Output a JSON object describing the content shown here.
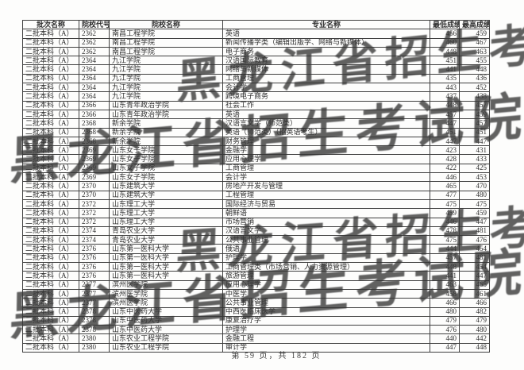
{
  "document": {
    "table": {
      "headers": [
        "批次名称",
        "院校代号",
        "院校名称",
        "专业名称",
        "最低成绩",
        "最高成绩"
      ],
      "rows": [
        [
          "二批本科（A）",
          "2362",
          "南昌工程学院",
          "英语",
          "456",
          "459"
        ],
        [
          "二批本科（A）",
          "2362",
          "南昌工程学院",
          "新闻传播学类（编辑出版学、网络与新媒体）",
          "460",
          "467"
        ],
        [
          "二批本科（A）",
          "2362",
          "南昌工程学院",
          "电子商务",
          "448",
          "463"
        ],
        [
          "二批本科（A）",
          "2364",
          "九江学院",
          "汉语国际教育",
          "451",
          "455"
        ],
        [
          "二批本科（A）",
          "2364",
          "九江学院",
          "网络与新媒体",
          "441",
          "448"
        ],
        [
          "二批本科（A）",
          "2364",
          "九江学院",
          "工商管理",
          "435",
          "436"
        ],
        [
          "二批本科（A）",
          "2364",
          "九江学院",
          "会计学",
          "443",
          "452"
        ],
        [
          "二批本科（A）",
          "2364",
          "九江学院",
          "跨境电子商务",
          "437",
          "438"
        ],
        [
          "二批本科（A）",
          "2366",
          "山东青年政治学院",
          "社会工作",
          "448",
          "457"
        ],
        [
          "二批本科（A）",
          "2366",
          "山东青年政治学院",
          "英语",
          "457",
          "459"
        ],
        [
          "二批本科（A）",
          "2368",
          "新余学院",
          "汉语言文学（师范类）",
          "447",
          "457"
        ],
        [
          "二批本科（A）",
          "2368",
          "新余学院",
          "英语（师范类）（招英语考生）",
          "451",
          "451"
        ],
        [
          "二批本科（A）",
          "2368",
          "新余学院",
          "财务管理",
          "447",
          "447"
        ],
        [
          "二批本科（A）",
          "2369",
          "山东女子学院",
          "金融学",
          "423",
          "431"
        ],
        [
          "二批本科（A）",
          "2369",
          "山东女子学院",
          "应用心理学",
          "428",
          "433"
        ],
        [
          "二批本科（A）",
          "2369",
          "山东女子学院",
          "工商管理",
          "422",
          "425"
        ],
        [
          "二批本科（A）",
          "2369",
          "山东女子学院",
          "会计学",
          "446",
          "453"
        ],
        [
          "二批本科（A）",
          "2370",
          "山东建筑大学",
          "房地产开发与管理",
          "465",
          "470"
        ],
        [
          "二批本科（A）",
          "2370",
          "山东建筑大学",
          "工程管理",
          "477",
          "480"
        ],
        [
          "二批本科（A）",
          "2372",
          "山东理工大学",
          "国际经济与贸易",
          "475",
          "475"
        ],
        [
          "二批本科（A）",
          "2372",
          "山东理工大学",
          "朝鲜语",
          "459",
          "459"
        ],
        [
          "二批本科（A）",
          "2372",
          "山东理工大学",
          "市场营销",
          "446",
          "447"
        ],
        [
          "二批本科（A）",
          "2374",
          "青岛农业大学",
          "汉语言文学",
          "478",
          "481"
        ],
        [
          "二批本科（A）",
          "2374",
          "青岛农业大学",
          "公共事业管理",
          "475",
          "476"
        ],
        [
          "二批本科（A）",
          "2376",
          "山东第一医科大学",
          "俄语",
          "444",
          "454"
        ],
        [
          "二批本科（A）",
          "2376",
          "山东第一医科大学",
          "护理学",
          "457",
          "481"
        ],
        [
          "二批本科（A）",
          "2376",
          "山东第一医科大学",
          "工商管理类（市场营销、人力资源管理）",
          "448",
          "454"
        ],
        [
          "二批本科（A）",
          "2376",
          "山东第一医科大学",
          "旅游管理",
          "441",
          "447"
        ],
        [
          "二批本科（A）",
          "2377",
          "滨州医学院",
          "应用心理学",
          "463",
          "465"
        ],
        [
          "二批本科（A）",
          "2377",
          "滨州医学院",
          "中医学",
          "458",
          "461"
        ],
        [
          "二批本科（A）",
          "2377",
          "滨州医学院",
          "公共事业管理",
          "466",
          "466"
        ],
        [
          "二批本科（A）",
          "2378",
          "山东中医药大学",
          "中西医临床医学",
          "480",
          "482"
        ],
        [
          "二批本科（A）",
          "2378",
          "山东中医药大学",
          "康复治疗学",
          "479",
          "479"
        ],
        [
          "二批本科（A）",
          "2378",
          "山东中医药大学",
          "护理学",
          "476",
          "480"
        ],
        [
          "二批本科（A）",
          "2380",
          "山东农业工程学院",
          "金融工程",
          "440",
          "442"
        ],
        [
          "二批本科（A）",
          "2380",
          "山东农业工程学院",
          "审计学",
          "447",
          "448"
        ]
      ]
    },
    "watermark": {
      "text": "黑龙江省招生考试院"
    },
    "footer": {
      "page_info": "第 59 页，共 182 页"
    }
  }
}
